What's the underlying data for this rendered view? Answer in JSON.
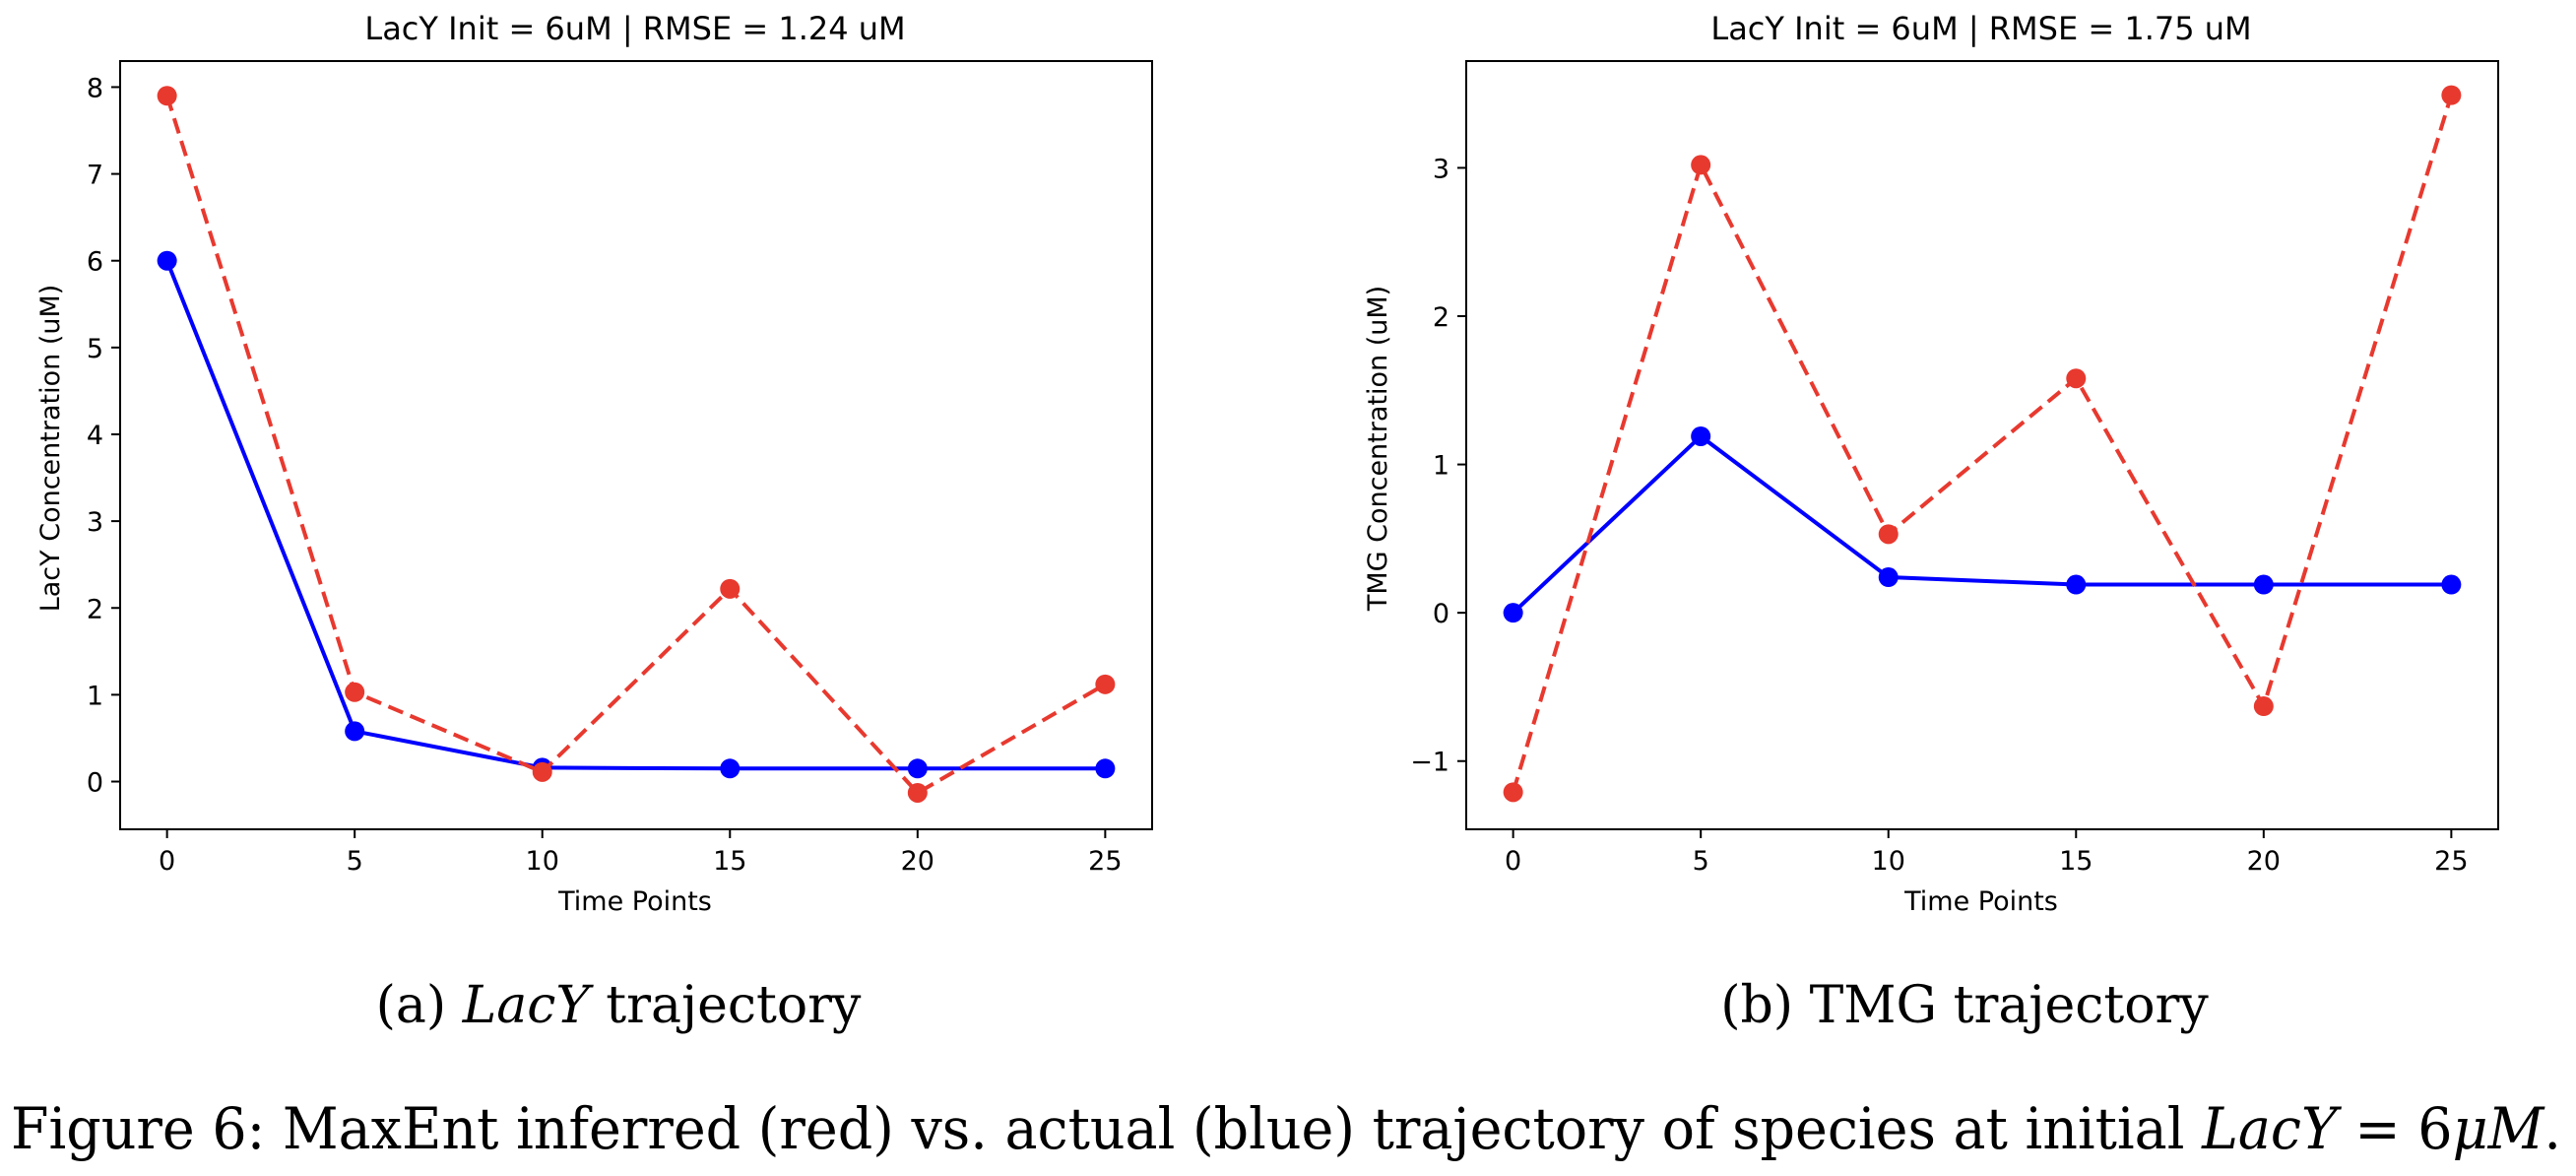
{
  "colors": {
    "actual": "#0000ff",
    "inferred": "#e8392f"
  },
  "chart_data": [
    {
      "type": "line",
      "title": "LacY Init = 6uM | RMSE = 1.24 uM",
      "xlabel": "Time Points",
      "ylabel": "LacY Concentration (uM)",
      "x": [
        0,
        5,
        10,
        15,
        20,
        25
      ],
      "xlim": [
        -1.25,
        26.25
      ],
      "ylim": [
        -0.55,
        8.3
      ],
      "xticks": [
        0,
        5,
        10,
        15,
        20,
        25
      ],
      "yticks": [
        0,
        1,
        2,
        3,
        4,
        5,
        6,
        7,
        8
      ],
      "grid": false,
      "legend": null,
      "series": [
        {
          "color": "#0000ff",
          "style": "solid",
          "marker": "circle",
          "values": [
            6.0,
            0.58,
            0.16,
            0.15,
            0.15,
            0.15
          ]
        },
        {
          "color": "#e8392f",
          "style": "dashed",
          "marker": "circle",
          "values": [
            7.9,
            1.03,
            0.11,
            2.22,
            -0.13,
            1.12
          ]
        }
      ]
    },
    {
      "type": "line",
      "title": "LacY Init = 6uM | RMSE = 1.75 uM",
      "xlabel": "Time Points",
      "ylabel": "TMG Concentration (uM)",
      "x": [
        0,
        5,
        10,
        15,
        20,
        25
      ],
      "xlim": [
        -1.25,
        26.25
      ],
      "ylim": [
        -1.46,
        3.72
      ],
      "xticks": [
        0,
        5,
        10,
        15,
        20,
        25
      ],
      "yticks": [
        -1,
        0,
        1,
        2,
        3
      ],
      "grid": false,
      "legend": null,
      "series": [
        {
          "color": "#0000ff",
          "style": "solid",
          "marker": "circle",
          "values": [
            0.0,
            1.19,
            0.24,
            0.19,
            0.19,
            0.19
          ]
        },
        {
          "color": "#e8392f",
          "style": "dashed",
          "marker": "circle",
          "values": [
            -1.21,
            3.02,
            0.53,
            1.58,
            -0.63,
            3.49
          ]
        }
      ]
    }
  ],
  "subcaptions": [
    {
      "prefix": "(a) ",
      "emph": "LacY",
      "suffix": " trajectory"
    },
    {
      "prefix": "(b) TMG trajectory",
      "emph": "",
      "suffix": ""
    }
  ],
  "caption": {
    "part1": "Figure 6: MaxEnt inferred (red) vs. actual (blue) trajectory of species at initial ",
    "emph1": "LacY",
    "part2": " = 6",
    "emph2": "μM",
    "part3": "."
  }
}
